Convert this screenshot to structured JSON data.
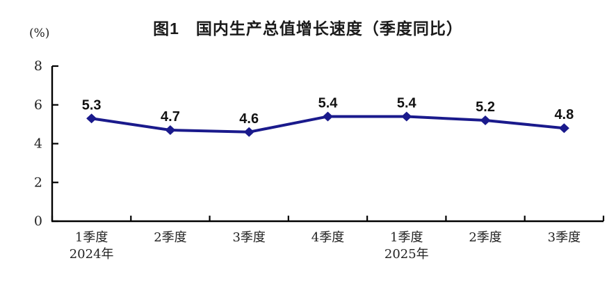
{
  "figure": {
    "title": "图1　国内生产总值增长速度（季度同比）",
    "unit_label": "(%)"
  },
  "chart_data": {
    "type": "line",
    "title": "图1　国内生产总值增长速度（季度同比）",
    "ylabel": "(%)",
    "xlabel": "",
    "categories": [
      "1季度",
      "2季度",
      "3季度",
      "4季度",
      "1季度",
      "2季度",
      "3季度"
    ],
    "year_sublabels": [
      {
        "index": 0,
        "label": "2024年"
      },
      {
        "index": 4,
        "label": "2025年"
      }
    ],
    "series": [
      {
        "name": "国内生产总值增长速度（季度同比）",
        "values": [
          5.3,
          4.7,
          4.6,
          5.4,
          5.4,
          5.2,
          4.8
        ],
        "data_labels": [
          "5.3",
          "4.7",
          "4.6",
          "5.4",
          "5.4",
          "5.2",
          "4.8"
        ]
      }
    ],
    "ylim": [
      0,
      8
    ],
    "yticks": [
      0,
      2,
      4,
      6,
      8
    ],
    "grid": false,
    "legend_position": "none",
    "marker": "diamond",
    "colors": {
      "line": "#1a1a8c",
      "axis": "#000000",
      "tick_text": "#222222",
      "data_label_text": "#111111",
      "background": "#ffffff"
    }
  }
}
